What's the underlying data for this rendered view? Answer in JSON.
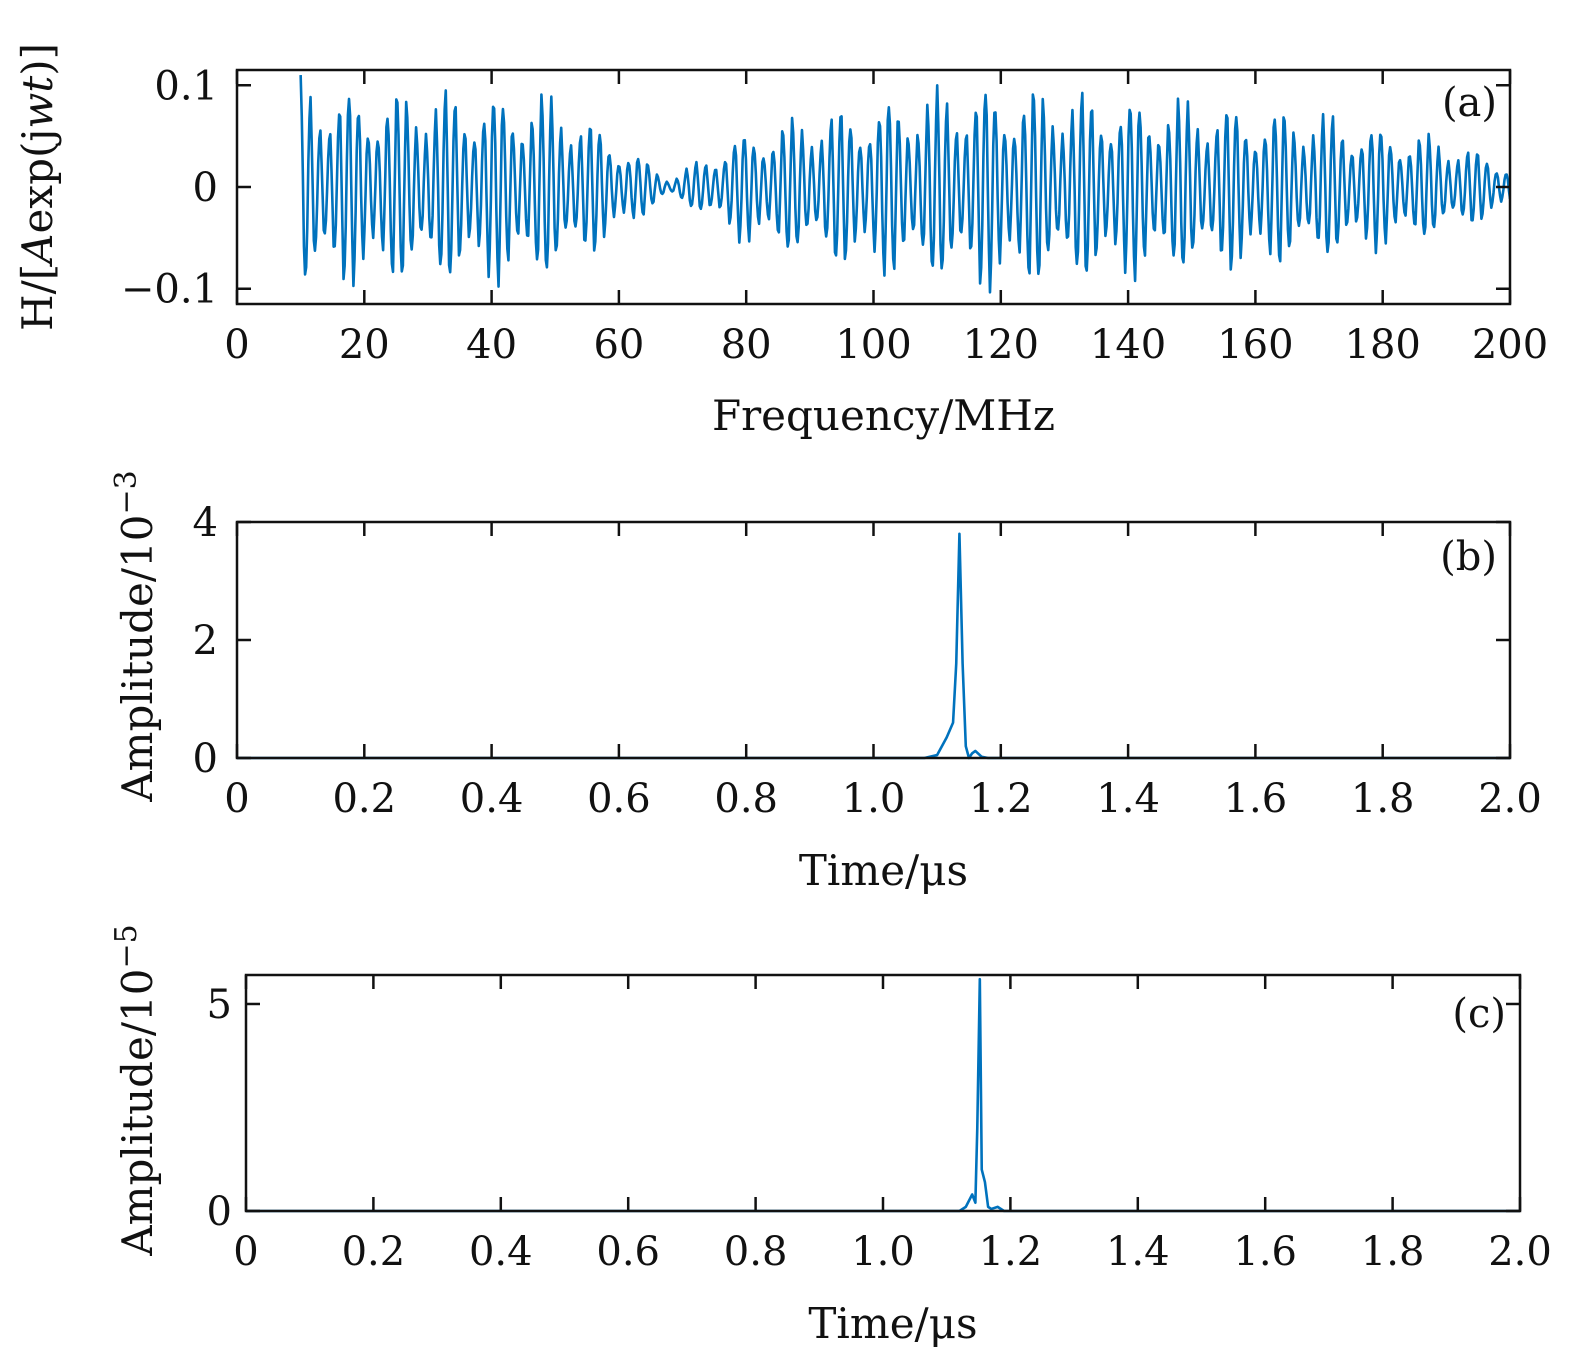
{
  "colors": {
    "series": "#0072bd",
    "axis": "#111111"
  },
  "chart_data": [
    {
      "id": "a",
      "type": "line",
      "panel_tag": "(a)",
      "xlabel": "Frequency/MHz",
      "ylabel_parts": {
        "prefix": "H/[",
        "italic_A": "A",
        "middle": "exp(j",
        "italic_wt": "wt",
        "suffix": ")]"
      },
      "xlim": [
        0,
        200
      ],
      "ylim": [
        -0.115,
        0.115
      ],
      "xticks": [
        0,
        20,
        40,
        60,
        80,
        100,
        120,
        140,
        160,
        180,
        200
      ],
      "xtick_labels": [
        "0",
        "20",
        "40",
        "60",
        "80",
        "100",
        "120",
        "140",
        "160",
        "180",
        "200"
      ],
      "yticks": [
        -0.1,
        0,
        0.1
      ],
      "ytick_labels": [
        "−0.1",
        "0",
        "0.1"
      ],
      "series": [
        {
          "name": "H",
          "generator": "oscillation",
          "x_start": 10,
          "x_end": 200,
          "samples": 1100,
          "carrier_cycles_per_mhz": 0.66,
          "envelope": {
            "x": [
              10,
              20,
              40,
              50,
              60,
              68,
              80,
              100,
              118,
              130,
              150,
              170,
              190,
              200
            ],
            "y": [
              0.11,
              0.1,
              0.1,
              0.095,
              0.05,
              0.008,
              0.06,
              0.09,
              0.108,
              0.1,
              0.09,
              0.078,
              0.05,
              0.025
            ]
          }
        }
      ]
    },
    {
      "id": "b",
      "type": "line",
      "panel_tag": "(b)",
      "xlabel": "Time/μs",
      "ylabel_text": "Amplitude/10",
      "ylabel_exp": "−3",
      "xlim": [
        0,
        2.0
      ],
      "ylim": [
        0,
        4.0
      ],
      "xticks": [
        0,
        0.2,
        0.4,
        0.6,
        0.8,
        1.0,
        1.2,
        1.4,
        1.6,
        1.8,
        2.0
      ],
      "xtick_labels": [
        "0",
        "0.2",
        "0.4",
        "0.6",
        "0.8",
        "1.0",
        "1.2",
        "1.4",
        "1.6",
        "1.8",
        "2.0"
      ],
      "yticks": [
        0,
        2,
        4
      ],
      "ytick_labels": [
        "0",
        "2",
        "4"
      ],
      "series": [
        {
          "name": "amplitude",
          "x": [
            0,
            1.08,
            1.1,
            1.115,
            1.125,
            1.13,
            1.135,
            1.14,
            1.145,
            1.15,
            1.155,
            1.16,
            1.17,
            1.18,
            2.0
          ],
          "y": [
            0,
            0,
            0.05,
            0.35,
            0.6,
            1.6,
            3.8,
            1.6,
            0.2,
            0.0,
            0.08,
            0.12,
            0.02,
            0,
            0
          ]
        }
      ]
    },
    {
      "id": "c",
      "type": "line",
      "panel_tag": "(c)",
      "xlabel": "Time/μs",
      "ylabel_text": "Amplitude/10",
      "ylabel_exp": "−5",
      "xlim": [
        0,
        2.0
      ],
      "ylim": [
        0,
        5.7
      ],
      "xticks": [
        0,
        0.2,
        0.4,
        0.6,
        0.8,
        1.0,
        1.2,
        1.4,
        1.6,
        1.8,
        2.0
      ],
      "xtick_labels": [
        "0",
        "0.2",
        "0.4",
        "0.6",
        "0.8",
        "1.0",
        "1.2",
        "1.4",
        "1.6",
        "1.8",
        "2.0"
      ],
      "yticks": [
        0,
        5
      ],
      "ytick_labels": [
        "0",
        "5"
      ],
      "series": [
        {
          "name": "amplitude",
          "x": [
            0,
            1.12,
            1.13,
            1.14,
            1.145,
            1.148,
            1.152,
            1.155,
            1.16,
            1.165,
            1.17,
            1.18,
            1.19,
            2.0
          ],
          "y": [
            0,
            0,
            0.1,
            0.4,
            0.2,
            2.0,
            5.6,
            1.0,
            0.7,
            0.1,
            0.05,
            0.1,
            0,
            0
          ]
        }
      ]
    }
  ]
}
